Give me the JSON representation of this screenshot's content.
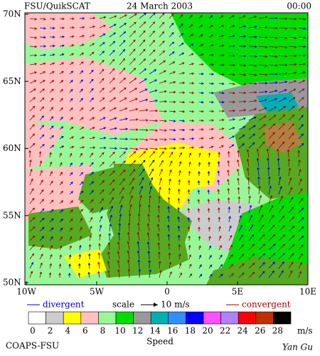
{
  "header": {
    "title": "FSU/QuikSCAT",
    "date": "24 March 2003",
    "time": "00:00"
  },
  "map": {
    "lat_labels": [
      "70N",
      "65N",
      "60N",
      "55N",
      "50N"
    ],
    "lon_labels": [
      "10W",
      "5W",
      "0",
      "5E",
      "10E"
    ]
  },
  "legend": {
    "divergent": "divergent",
    "scale": "scale",
    "scale_value": "10 m/s",
    "convergent": "convergent",
    "divergent_color": "#0000cc",
    "convergent_color": "#990000"
  },
  "colorbar": {
    "labels": [
      0,
      2,
      4,
      6,
      8,
      10,
      12,
      14,
      16,
      18,
      20,
      22,
      24,
      26,
      28
    ],
    "unit": "m/s",
    "title": "Speed",
    "colors": [
      "#ffffff",
      "#cccccc",
      "#ffff00",
      "#ffc0c0",
      "#98f898",
      "#00dd00",
      "#999999",
      "#00b0b0",
      "#3090ff",
      "#0000ff",
      "#ff50ff",
      "#b080ff",
      "#ff0000",
      "#c03000",
      "#000000"
    ]
  },
  "footer": {
    "left": "COAPS-FSU",
    "right": "Yan Gu"
  }
}
